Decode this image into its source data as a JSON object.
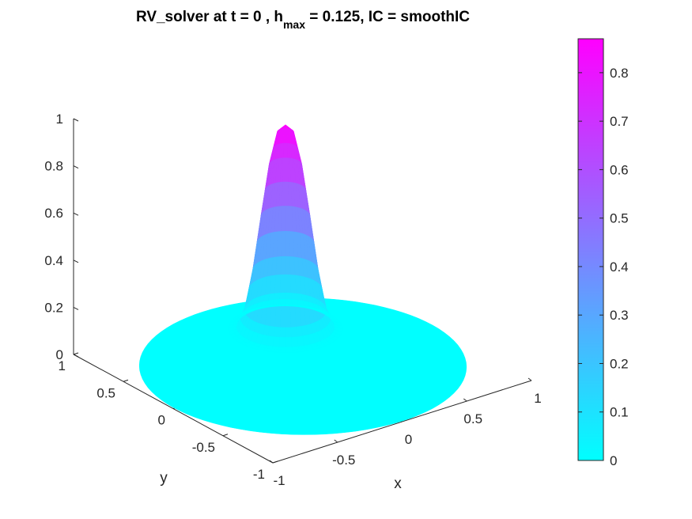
{
  "title": {
    "prefix": "RV_solver at t = 0 , h",
    "subscript": "max",
    "suffix": " = 0.125, IC = smoothIC"
  },
  "chart_data": {
    "type": "surface",
    "title": "RV_solver at t = 0 , h_max = 0.125, IC = smoothIC",
    "xlabel": "x",
    "ylabel": "y",
    "zlabel": "",
    "xlim": [
      -1,
      1
    ],
    "ylim": [
      -1,
      1
    ],
    "zlim": [
      0,
      1
    ],
    "x_ticks": [
      "-1",
      "-0.5",
      "0",
      "0.5",
      "1"
    ],
    "y_ticks": [
      "-1",
      "-0.5",
      "0",
      "0.5",
      "1"
    ],
    "z_ticks": [
      "0",
      "0.2",
      "0.4",
      "0.6",
      "0.8",
      "1"
    ],
    "domain": "unit disk x^2 + y^2 <= 1",
    "peak": {
      "x": 0.25,
      "y": 0.5,
      "z": 0.87
    },
    "profile": {
      "r": [
        0,
        0.05,
        0.1,
        0.15,
        0.2,
        0.25,
        0.3,
        0.35
      ],
      "z": [
        0.87,
        0.84,
        0.7,
        0.48,
        0.25,
        0.08,
        0.01,
        0.0
      ]
    },
    "grid": false,
    "colorbar": {
      "position": "right",
      "ticks": [
        "0",
        "0.1",
        "0.2",
        "0.3",
        "0.4",
        "0.5",
        "0.6",
        "0.7",
        "0.8"
      ],
      "range": [
        0,
        0.87
      ],
      "colormap": [
        "#00ffff",
        "#ff00ff"
      ]
    }
  }
}
